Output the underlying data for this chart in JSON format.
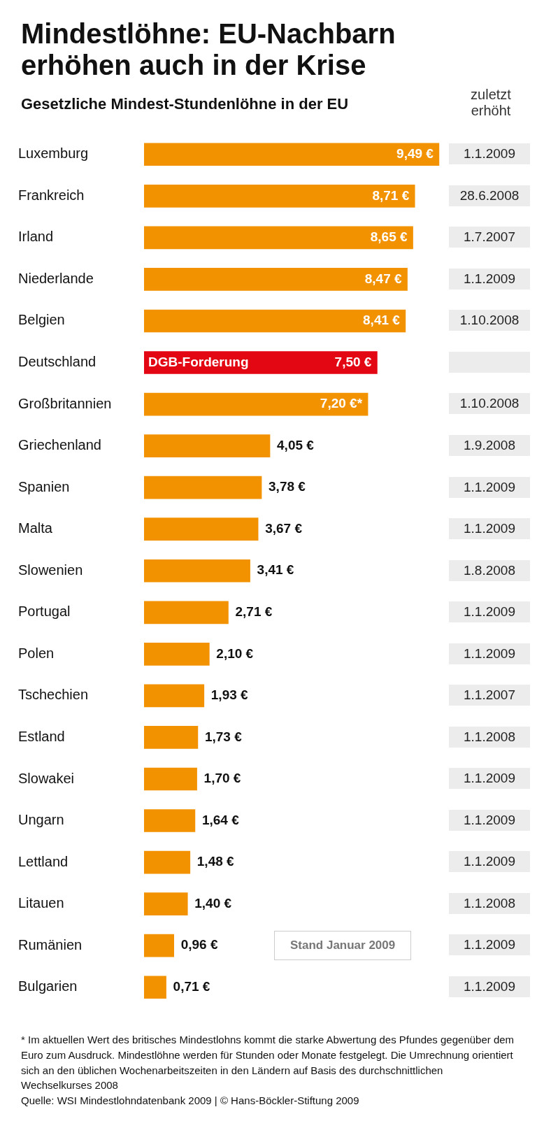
{
  "chart_data": {
    "type": "bar",
    "orientation": "horizontal",
    "title": "Mindestlöhne: EU-Nachbarn erhöhen auch in der Krise",
    "subtitle": "Gesetzliche Mindest-Stundenlöhne in der EU",
    "categories": [
      "Luxemburg",
      "Frankreich",
      "Irland",
      "Niederlande",
      "Belgien",
      "Deutschland",
      "Großbritannien",
      "Griechenland",
      "Spanien",
      "Malta",
      "Slowenien",
      "Portugal",
      "Polen",
      "Tschechien",
      "Estland",
      "Slowakei",
      "Ungarn",
      "Lettland",
      "Litauen",
      "Rumänien",
      "Bulgarien"
    ],
    "values": [
      9.49,
      8.71,
      8.65,
      8.47,
      8.41,
      7.5,
      7.2,
      4.05,
      3.78,
      3.67,
      3.41,
      2.71,
      2.1,
      1.93,
      1.73,
      1.7,
      1.64,
      1.48,
      1.4,
      0.96,
      0.71
    ],
    "colors": [
      "#f39200",
      "#f39200",
      "#f39200",
      "#f39200",
      "#f39200",
      "#e30613",
      "#f39200",
      "#f39200",
      "#f39200",
      "#f39200",
      "#f39200",
      "#f39200",
      "#f39200",
      "#f39200",
      "#f39200",
      "#f39200",
      "#f39200",
      "#f39200",
      "#f39200",
      "#f39200",
      "#f39200"
    ],
    "value_labels": [
      "9,49 €",
      "8,71 €",
      "8,65 €",
      "8,47 €",
      "8,41 €",
      "7,50 €",
      "7,20 €*",
      "4,05 €",
      "3,78 €",
      "3,67 €",
      "3,41 €",
      "2,71 €",
      "2,10 €",
      "1,93 €",
      "1,73 €",
      "1,70 €",
      "1,64 €",
      "1,48 €",
      "1,40 €",
      "0,96 €",
      "0,71 €"
    ],
    "annotations": [
      "zuletzt erhöht",
      "Stand Januar 2009",
      {
        "text": "DGB-Forderung",
        "x": 0,
        "y": "Deutschland"
      },
      "1.1.2009",
      "28.6.2008",
      "1.7.2007",
      "1.1.2009",
      "1.10.2008",
      "1.10.2008",
      "1.9.2008",
      "1.1.2009",
      "1.1.2009",
      "1.8.2008",
      "1.1.2009",
      "1.1.2009",
      "1.1.2007",
      "1.1.2008",
      "1.1.2009",
      "1.1.2009",
      "1.1.2009",
      "1.1.2008",
      "1.1.2009",
      "1.1.2009",
      "* Im aktuellen Wert des britisches Mindestlohns kommt die starke Abwertung des Pfundes gegenüber dem Euro zum Ausdruck. Mindestlöhne werden für Stunden oder Monate festgelegt. Die Umrechnung orientiert sich an den üblichen Wochenarbeitszeiten in den Ländern auf Basis des durchschnittlichen Wechselkurses 2008",
      "Quelle: WSI Mindestlohndatenbank 2009 | © Hans-Böckler-Stiftung 2009"
    ]
  }
}
